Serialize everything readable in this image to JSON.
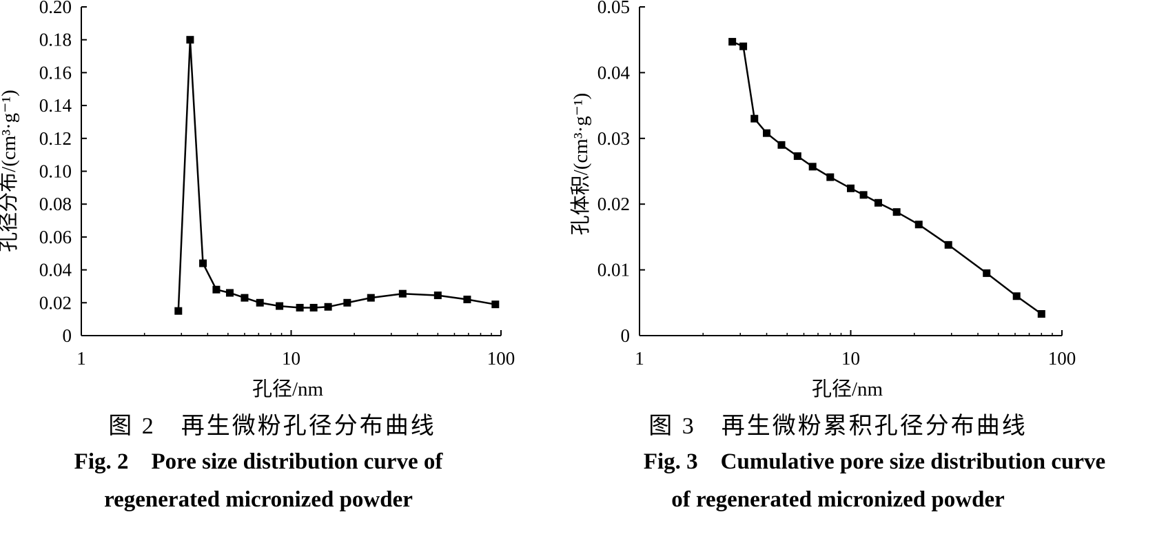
{
  "charts": [
    {
      "chart_data": {
        "type": "line",
        "x_scale": "log",
        "xlabel": "孔径/nm",
        "ylabel": "孔径分布/(cm³·g⁻¹)",
        "xlim": [
          1,
          100
        ],
        "ylim": [
          0,
          0.2
        ],
        "x_ticks": [
          1,
          10,
          100
        ],
        "x_tick_labels": [
          "1",
          "10",
          "100"
        ],
        "y_ticks": [
          0,
          0.02,
          0.04,
          0.06,
          0.08,
          0.1,
          0.12,
          0.14,
          0.16,
          0.18,
          0.2
        ],
        "y_tick_labels": [
          "0",
          "0.02",
          "0.04",
          "0.06",
          "0.08",
          "0.10",
          "0.12",
          "0.14",
          "0.16",
          "0.18",
          "0.20"
        ],
        "grid": false,
        "marker": "square",
        "x": [
          2.9,
          3.3,
          3.8,
          4.4,
          5.1,
          6.0,
          7.1,
          8.8,
          11.0,
          12.8,
          15.0,
          18.5,
          24.0,
          34.0,
          50.0,
          69.0,
          94.0
        ],
        "y": [
          0.015,
          0.18,
          0.044,
          0.028,
          0.026,
          0.023,
          0.02,
          0.018,
          0.017,
          0.017,
          0.0175,
          0.02,
          0.023,
          0.0255,
          0.0245,
          0.022,
          0.019
        ]
      },
      "caption_cn": "图 2　再生微粉孔径分布曲线",
      "caption_en_1": "Fig. 2　Pore size distribution curve of",
      "caption_en_2": "regenerated micronized powder"
    },
    {
      "chart_data": {
        "type": "line",
        "x_scale": "log",
        "xlabel": "孔径/nm",
        "ylabel": "孔体积/(cm³·g⁻¹)",
        "xlim": [
          1,
          100
        ],
        "ylim": [
          0,
          0.05
        ],
        "x_ticks": [
          1,
          10,
          100
        ],
        "x_tick_labels": [
          "1",
          "10",
          "100"
        ],
        "y_ticks": [
          0,
          0.01,
          0.02,
          0.03,
          0.04,
          0.05
        ],
        "y_tick_labels": [
          "0",
          "0.01",
          "0.02",
          "0.03",
          "0.04",
          "0.05"
        ],
        "grid": false,
        "marker": "square",
        "x": [
          2.75,
          3.1,
          3.5,
          4.0,
          4.7,
          5.6,
          6.6,
          8.0,
          10.0,
          11.5,
          13.5,
          16.5,
          21.0,
          29.0,
          44.0,
          61.0,
          80.0
        ],
        "y": [
          0.0447,
          0.044,
          0.033,
          0.0308,
          0.029,
          0.0273,
          0.0257,
          0.0241,
          0.0224,
          0.0214,
          0.0202,
          0.0188,
          0.0169,
          0.0138,
          0.0095,
          0.006,
          0.0033
        ]
      },
      "caption_cn": "图 3　再生微粉累积孔径分布曲线",
      "caption_en_1": "Fig. 3　Cumulative pore size distribution curve",
      "caption_en_2": "of regenerated micronized powder"
    }
  ]
}
